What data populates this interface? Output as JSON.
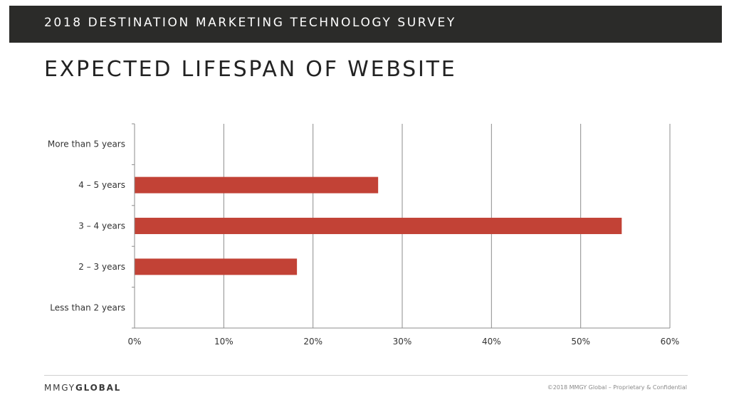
{
  "header": {
    "title": "2018 DESTINATION MARKETING TECHNOLOGY SURVEY"
  },
  "page": {
    "title": "EXPECTED LIFESPAN OF WEBSITE"
  },
  "chart_data": {
    "type": "bar",
    "orientation": "horizontal",
    "categories": [
      "More than 5 years",
      "4 – 5 years",
      "3 – 4 years",
      "2 – 3 years",
      "Less than 2 years"
    ],
    "values": [
      0,
      27.3,
      54.6,
      18.2,
      0
    ],
    "xlim": [
      0,
      60
    ],
    "x_ticks": [
      0,
      10,
      20,
      30,
      40,
      50,
      60
    ],
    "x_tick_labels": [
      "0%",
      "10%",
      "20%",
      "30%",
      "40%",
      "50%",
      "60%"
    ],
    "bar_color": "#c24236",
    "grid": "vertical",
    "title": "",
    "xlabel": "",
    "ylabel": "",
    "legend": "none"
  },
  "footer": {
    "logo_light": "MMGY",
    "logo_bold": "GLOBAL",
    "copyright": "©2018 MMGY Global – Proprietary & Confidential"
  }
}
